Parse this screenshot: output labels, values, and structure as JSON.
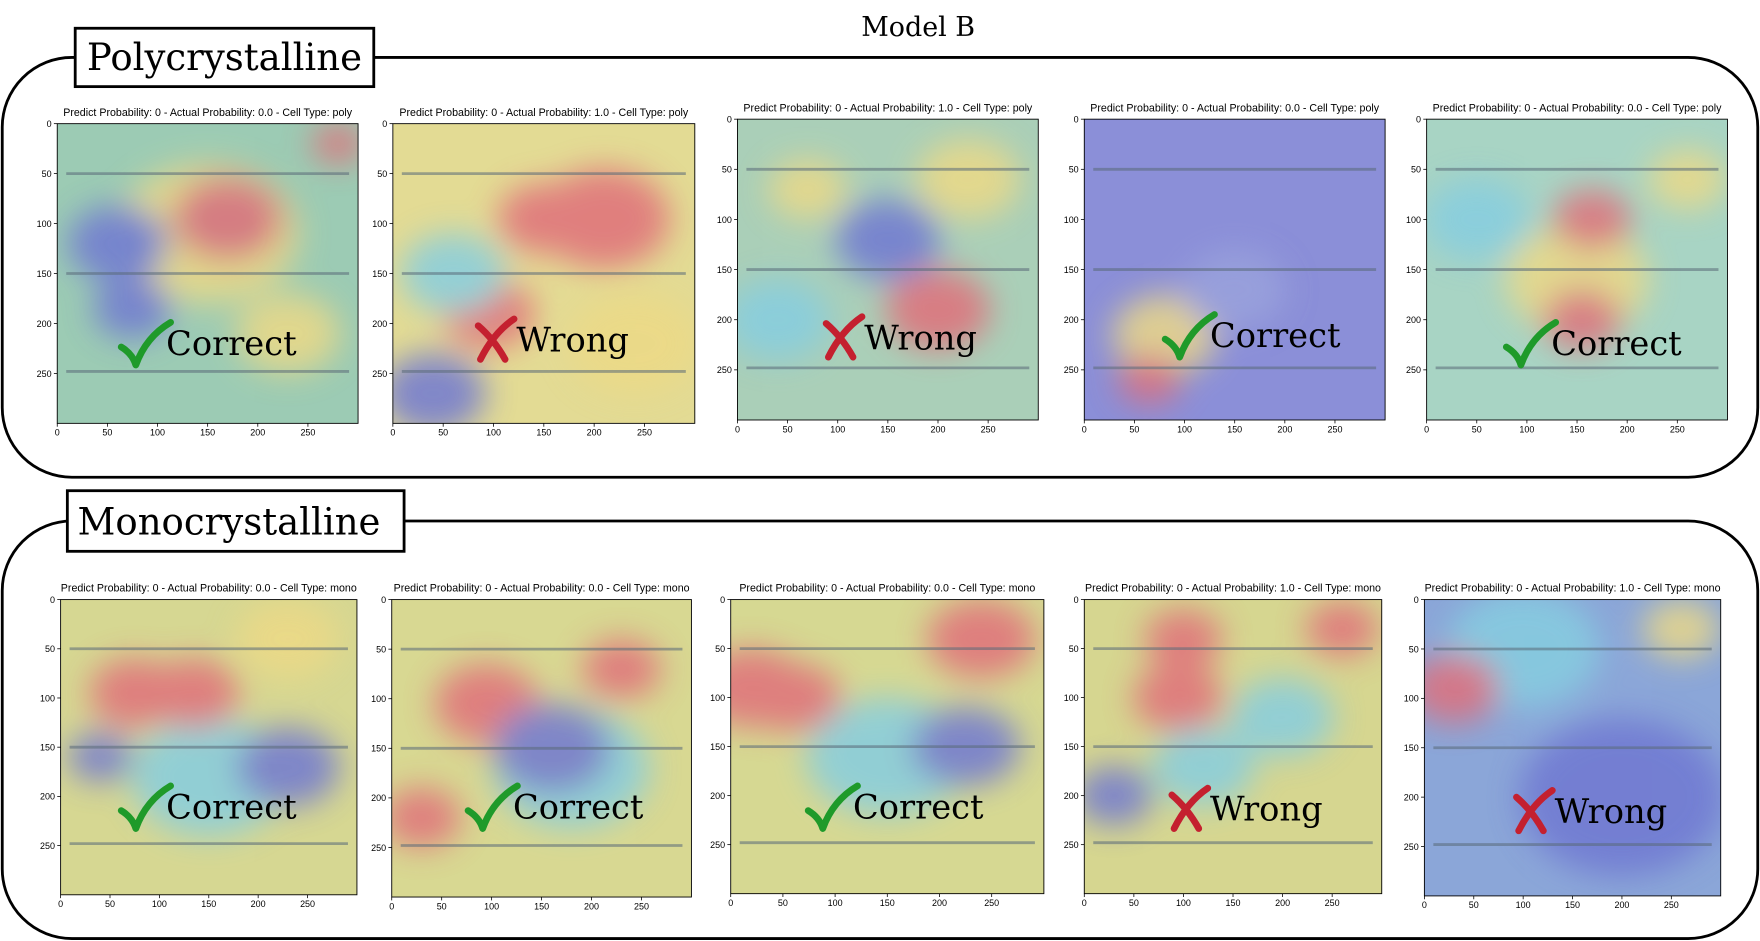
{
  "title": "Model B",
  "groups": [
    {
      "label": "Polycrystalline",
      "panels": [
        {
          "title": "Predict Probability: 0 - Actual Probability: 0.0 - Cell Type: poly",
          "result": "Correct"
        },
        {
          "title": "Predict Probability: 0 - Actual Probability: 1.0 - Cell Type: poly",
          "result": "Wrong"
        },
        {
          "title": "Predict Probability: 0 - Actual Probability: 1.0 - Cell Type: poly",
          "result": "Wrong"
        },
        {
          "title": "Predict Probability: 0 - Actual Probability: 0.0 - Cell Type: poly",
          "result": "Correct"
        },
        {
          "title": "Predict Probability: 0 - Actual Probability: 0.0 - Cell Type: poly",
          "result": "Correct"
        }
      ]
    },
    {
      "label": "Monocrystalline",
      "panels": [
        {
          "title": "Predict Probability: 0 - Actual Probability: 0.0 - Cell Type: mono",
          "result": "Correct"
        },
        {
          "title": "Predict Probability: 0 - Actual Probability: 0.0 - Cell Type: mono",
          "result": "Correct"
        },
        {
          "title": "Predict Probability: 0 - Actual Probability: 0.0 - Cell Type: mono",
          "result": "Correct"
        },
        {
          "title": "Predict Probability: 0 - Actual Probability: 1.0 - Cell Type: mono",
          "result": "Wrong"
        },
        {
          "title": "Predict Probability: 0 - Actual Probability: 1.0 - Cell Type: mono",
          "result": "Wrong"
        }
      ]
    }
  ],
  "axes": {
    "xlim": [
      0,
      300
    ],
    "ylim": [
      0,
      300
    ],
    "xticks": [
      0,
      50,
      100,
      150,
      200,
      250
    ],
    "yticks": [
      0,
      50,
      100,
      150,
      200,
      250
    ]
  }
}
